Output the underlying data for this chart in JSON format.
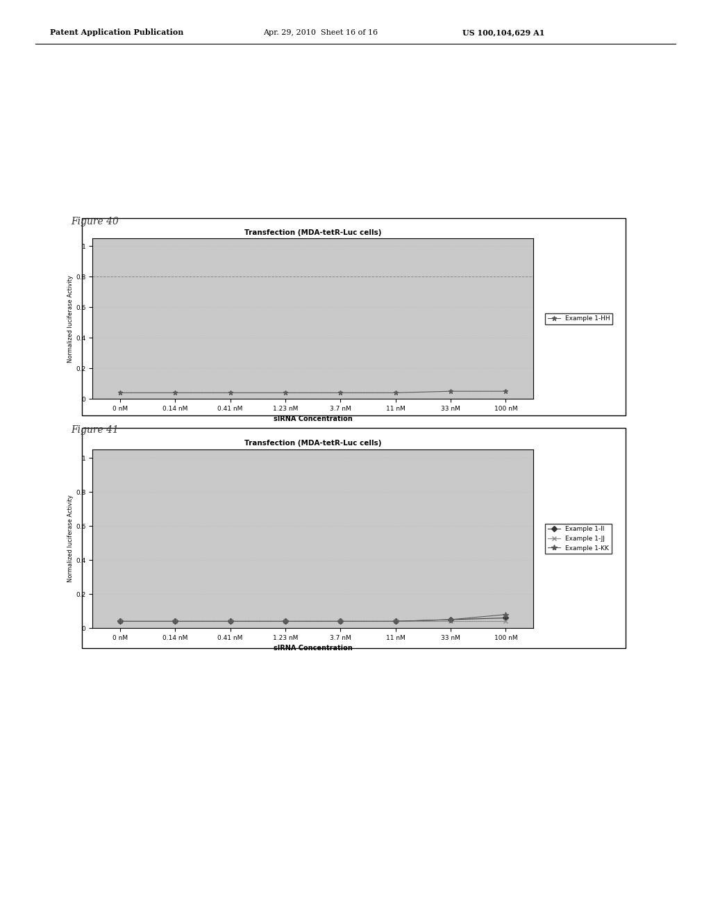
{
  "fig40": {
    "title": "Transfection (MDA-tetR-Luc cells)",
    "xlabel": "sIRNA Concentration",
    "ylabel": "Normalized luciferase Activity",
    "x_labels": [
      "0 nM",
      "0.14 nM",
      "0.41 nM",
      "1.23 nM",
      "3.7 nM",
      "11 nM",
      "33 nM",
      "100 nM"
    ],
    "ylim": [
      0,
      1.05
    ],
    "yticks": [
      0,
      0.2,
      0.4,
      0.6,
      0.8,
      1
    ],
    "series": [
      {
        "label": "Example 1-HH",
        "values": [
          0.04,
          0.04,
          0.04,
          0.04,
          0.04,
          0.04,
          0.05,
          0.05
        ],
        "color": "#555555",
        "marker": "*",
        "linestyle": "-"
      }
    ],
    "hline": 0.8,
    "background_color": "#c8c8c8",
    "grid_color": "#aaaaaa"
  },
  "fig41": {
    "title": "Transfection (MDA-tetR-Luc cells)",
    "xlabel": "sIRNA Concentration",
    "ylabel": "Normalized luciferase Activity",
    "x_labels": [
      "0 nM",
      "0.14 nM",
      "0.41 nM",
      "1.23 nM",
      "3.7 nM",
      "11 nM",
      "33 nM",
      "100 nM"
    ],
    "ylim": [
      0,
      1.05
    ],
    "yticks": [
      0,
      0.2,
      0.4,
      0.6,
      0.8,
      1
    ],
    "series": [
      {
        "label": "Example 1-II",
        "values": [
          0.04,
          0.04,
          0.04,
          0.04,
          0.04,
          0.04,
          0.05,
          0.06
        ],
        "color": "#333333",
        "marker": "D",
        "linestyle": "-",
        "markersize": 4
      },
      {
        "label": "Example 1-JJ",
        "values": [
          0.04,
          0.04,
          0.04,
          0.04,
          0.04,
          0.04,
          0.04,
          0.04
        ],
        "color": "#888888",
        "marker": "x",
        "linestyle": "-",
        "markersize": 5
      },
      {
        "label": "Example 1-KK",
        "values": [
          0.04,
          0.04,
          0.04,
          0.04,
          0.04,
          0.04,
          0.05,
          0.08
        ],
        "color": "#555555",
        "marker": "*",
        "linestyle": "-",
        "markersize": 6
      }
    ],
    "background_color": "#c8c8c8",
    "grid_color": "#aaaaaa"
  },
  "page_bg": "#ffffff",
  "header_left": "Patent Application Publication",
  "header_mid": "Apr. 29, 2010  Sheet 16 of 16",
  "header_right": "US 100,104,629 A1",
  "figure_label_40": "Figure 40",
  "figure_label_41": "Figure 41",
  "figure_label_fontsize": 10,
  "axis_fontsize": 6.5,
  "title_fontsize": 7.5,
  "legend_fontsize": 6.5,
  "xlabel_fontsize": 7,
  "ylabel_fontsize": 6
}
